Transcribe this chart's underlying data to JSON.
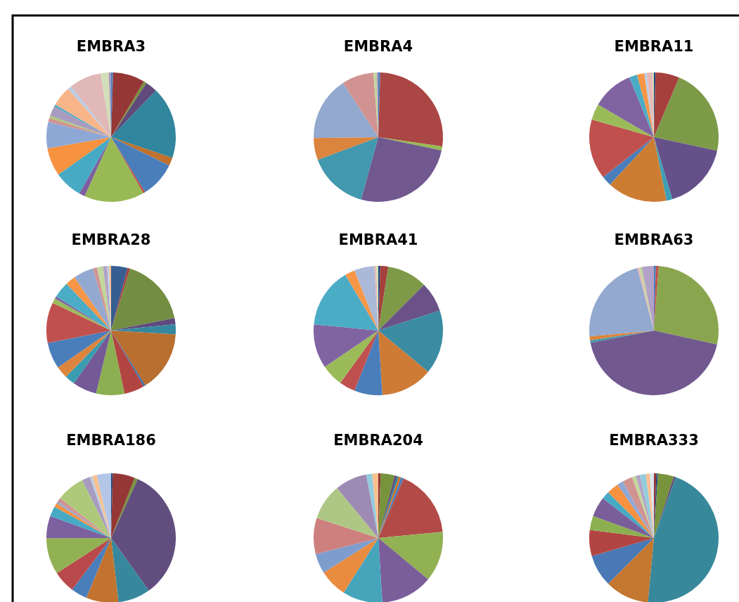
{
  "chart_data": [
    {
      "type": "pie",
      "title": "EMBRA3",
      "categories": [
        null,
        null,
        null,
        null,
        null,
        null,
        null,
        null,
        null,
        null,
        null,
        null,
        null,
        null,
        null,
        null,
        null,
        null,
        null,
        null,
        null,
        null
      ],
      "values": [
        0.5,
        8,
        0.7,
        3,
        18,
        2,
        9,
        0.5,
        15,
        1.5,
        7,
        7,
        6.6,
        1,
        0.6,
        2.5,
        0.5,
        5,
        1,
        8,
        2,
        0.6
      ],
      "colors": [
        "#4f81bd",
        "#953735",
        "#77933c",
        "#604a7b",
        "#31859c",
        "#c0712d",
        "#4a7ebb",
        "#be4b48",
        "#98b954",
        "#7d60a0",
        "#46aac5",
        "#f69240",
        "#8ea8d6",
        "#d09392",
        "#afc97a",
        "#a89bc0",
        "#46aac5",
        "#f9b58a",
        "#b9cde5",
        "#e0b8b7",
        "#d2dfb8",
        "#a89bc0"
      ]
    },
    {
      "type": "pie",
      "title": "EMBRA4",
      "categories": [
        null,
        null,
        null,
        null,
        null,
        null,
        null,
        null,
        null,
        null
      ],
      "values": [
        0.5,
        26.8,
        1,
        26,
        15,
        5.5,
        16,
        8,
        0.8,
        0.4
      ],
      "colors": [
        "#4a7ebb",
        "#aa4643",
        "#98b954",
        "#71588f",
        "#4198af",
        "#db843d",
        "#93a9cf",
        "#d19392",
        "#c3d69b",
        "#a89bc0"
      ]
    },
    {
      "type": "pie",
      "title": "EMBRA11",
      "categories": [
        null,
        null,
        null,
        null,
        null,
        null,
        null,
        null,
        null,
        null,
        null,
        null,
        null,
        null,
        null
      ],
      "values": [
        0.4,
        6,
        22,
        17,
        1.5,
        15,
        2.5,
        15,
        4,
        10.4,
        2,
        1.8,
        0.6,
        1.5,
        0.3
      ],
      "colors": [
        "#1f497d",
        "#a5403d",
        "#7d9a48",
        "#66508a",
        "#3c9fb5",
        "#cd7d32",
        "#4a7ebb",
        "#c0504d",
        "#9bbb59",
        "#8064a2",
        "#4bacc6",
        "#f79646",
        "#b9cde5",
        "#e6b9b8",
        "#d2dfb8"
      ]
    },
    {
      "type": "pie",
      "title": "EMBRA28",
      "categories": [
        null,
        null,
        null,
        null,
        null,
        null,
        null,
        null,
        null,
        null,
        null,
        null,
        null,
        null,
        null,
        null,
        null,
        null,
        null,
        null,
        null,
        null,
        null,
        null
      ],
      "values": [
        4.1,
        0.6,
        17,
        1.5,
        2.5,
        15,
        0.5,
        5,
        7,
        6,
        2.5,
        3,
        6.5,
        10,
        1.2,
        0.6,
        4,
        2.5,
        5,
        1,
        1.5,
        1,
        0.5,
        0.5
      ],
      "colors": [
        "#375e91",
        "#a5403d",
        "#738d42",
        "#5f4a7f",
        "#35889e",
        "#b96f2f",
        "#3f6fa8",
        "#b24541",
        "#8cb051",
        "#735996",
        "#3a9cb0",
        "#dd853d",
        "#4a7ebb",
        "#c0504d",
        "#9bbb59",
        "#8064a2",
        "#4bacc6",
        "#f79646",
        "#94a9d0",
        "#d09392",
        "#c3d69b",
        "#b2a2c7",
        "#b9cde5",
        "#fac090"
      ]
    },
    {
      "type": "pie",
      "title": "EMBRA41",
      "categories": [
        null,
        null,
        null,
        null,
        null,
        null,
        null,
        null,
        null,
        null,
        null,
        null,
        null,
        null,
        null
      ],
      "values": [
        0.5,
        2,
        10,
        7.5,
        16,
        13,
        7,
        4,
        5.5,
        11,
        15,
        2.5,
        5,
        0.5,
        0.5
      ],
      "colors": [
        "#1f497d",
        "#a5403d",
        "#7e9a48",
        "#6a5288",
        "#3b8ca2",
        "#cd7b35",
        "#4a7ebb",
        "#c0504d",
        "#9bbb59",
        "#8064a2",
        "#4bacc6",
        "#f79646",
        "#aab9d8",
        "#e6b9b8",
        "#d2dfb8"
      ]
    },
    {
      "type": "pie",
      "title": "EMBRA63",
      "categories": [
        null,
        null,
        null,
        null,
        null,
        null,
        null,
        null,
        null,
        null
      ],
      "values": [
        0.5,
        0.7,
        27,
        43.1,
        0.6,
        1,
        22.1,
        0.5,
        0.6,
        3
      ],
      "colors": [
        "#4a7ebb",
        "#c0504d",
        "#89a54e",
        "#71588f",
        "#4198af",
        "#db843d",
        "#93a9cf",
        "#e6b9b8",
        "#c3d69b",
        "#b2a2c7"
      ]
    },
    {
      "type": "pie",
      "title": "EMBRA186",
      "categories": [
        null,
        null,
        null,
        null,
        null,
        null,
        null,
        null,
        null,
        null,
        null,
        null,
        null,
        null,
        null,
        null,
        null,
        null,
        null
      ],
      "values": [
        0.4,
        5.5,
        0.8,
        33,
        8,
        8,
        4,
        5.5,
        9,
        5.5,
        2.5,
        1,
        0.5,
        1,
        7,
        2,
        0.6,
        1.2,
        3.5
      ],
      "colors": [
        "#1f497d",
        "#953735",
        "#77933c",
        "#624e7e",
        "#37889d",
        "#c2742f",
        "#4a7ebb",
        "#b9494a",
        "#92b153",
        "#7d60a0",
        "#46aac5",
        "#f69240",
        "#94a9d0",
        "#d09392",
        "#afc97a",
        "#a89bc0",
        "#b9cde5",
        "#fac090",
        "#b4c6e7"
      ]
    },
    {
      "type": "pie",
      "title": "EMBRA204",
      "categories": [
        null,
        null,
        null,
        null,
        null,
        null,
        null,
        null,
        null,
        null,
        null,
        null,
        null,
        null,
        null,
        null,
        null
      ],
      "values": [
        0.6,
        3.5,
        0.6,
        0.5,
        0.5,
        0.7,
        17.1,
        12.5,
        13,
        10,
        7,
        5,
        9,
        9,
        8,
        1.5,
        1.5
      ],
      "colors": [
        "#953735",
        "#77933c",
        "#604a7b",
        "#31859c",
        "#e46c0a",
        "#4a7ebb",
        "#b24b48",
        "#92b153",
        "#7a5e9a",
        "#46a4bb",
        "#e98c3f",
        "#7f9dcc",
        "#cd807e",
        "#aec785",
        "#9e8bb4",
        "#93cddd",
        "#fac090"
      ]
    },
    {
      "type": "pie",
      "title": "EMBRA333",
      "categories": [
        null,
        null,
        null,
        null,
        null,
        null,
        null,
        null,
        null,
        null,
        null,
        null,
        null,
        null,
        null,
        null,
        null,
        null,
        null
      ],
      "values": [
        0.6,
        0.4,
        4,
        0.5,
        46,
        11,
        8,
        6.5,
        3.5,
        5,
        2,
        3,
        1.5,
        2.5,
        1,
        1,
        1.5,
        1,
        1
      ],
      "colors": [
        "#953735",
        "#1f497d",
        "#77933c",
        "#604a7b",
        "#37889b",
        "#c3772f",
        "#4a79b5",
        "#b24541",
        "#8cb051",
        "#7a5e9a",
        "#46aac5",
        "#f69240",
        "#8ea8d6",
        "#d09392",
        "#c3d69b",
        "#b2a2c7",
        "#93cddd",
        "#fac090",
        "#dbe5f1"
      ]
    }
  ]
}
